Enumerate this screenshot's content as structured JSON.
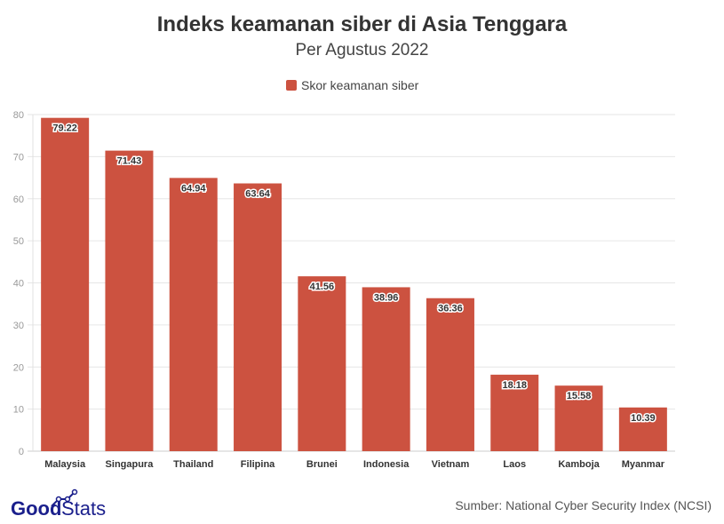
{
  "chart_data": {
    "type": "bar",
    "title": "Indeks keamanan siber di Asia Tenggara",
    "subtitle": "Per Agustus 2022",
    "categories": [
      "Malaysia",
      "Singapura",
      "Thailand",
      "Filipina",
      "Brunei",
      "Indonesia",
      "Vietnam",
      "Laos",
      "Kamboja",
      "Myanmar"
    ],
    "series": [
      {
        "name": "Skor keamanan siber",
        "values": [
          79.22,
          71.43,
          64.94,
          63.64,
          41.56,
          38.96,
          36.36,
          18.18,
          15.58,
          10.39
        ]
      }
    ],
    "ylim": [
      0,
      80
    ],
    "yticks": [
      0,
      10,
      20,
      30,
      40,
      50,
      60,
      70,
      80
    ],
    "grid": true,
    "legend": "top",
    "color": "#cc5240"
  },
  "source": "Sumber: National Cyber Security Index (NCSI)",
  "logo": {
    "text": "GoodStats",
    "color": "#1a1f8c"
  }
}
